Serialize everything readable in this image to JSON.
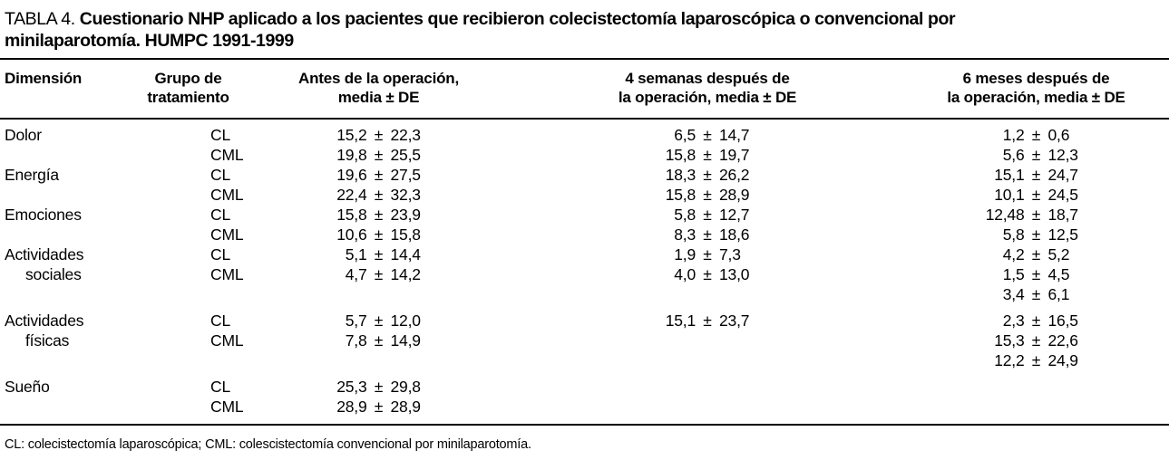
{
  "title": {
    "label": "TABLA 4.",
    "line1": "Cuestionario NHP aplicado a los pacientes que recibieron colecistectomía laparoscópica o convencional por",
    "line2": "minilaparotomía. HUMPC 1991-1999"
  },
  "table": {
    "headers": [
      "Dimensión",
      "Grupo de\ntratamiento",
      "Antes de la operación,\nmedia ± DE",
      "4 semanas después de\nla operación, media ± DE",
      "6 meses después de\nla operación, media ± DE"
    ],
    "rows": [
      {
        "dim": "Dolor",
        "grp": "CL",
        "antes": "15,2 ± 22,3",
        "sem4": "6,5 ± 14,7",
        "mes6": "1,2 ± 0,6"
      },
      {
        "dim": "",
        "grp": "CML",
        "antes": "19,8 ± 25,5",
        "sem4": "15,8 ± 19,7",
        "mes6": "5,6 ± 12,3"
      },
      {
        "dim": "Energía",
        "grp": "CL",
        "antes": "19,6 ± 27,5",
        "sem4": "18,3 ± 26,2",
        "mes6": "15,1 ± 24,7"
      },
      {
        "dim": "",
        "grp": "CML",
        "antes": "22,4 ± 32,3",
        "sem4": "15,8 ± 28,9",
        "mes6": "10,1 ± 24,5"
      },
      {
        "dim": "Emociones",
        "grp": "CL",
        "antes": "15,8 ± 23,9",
        "sem4": "5,8 ± 12,7",
        "mes6": "12,48 ± 18,7"
      },
      {
        "dim": "",
        "grp": "CML",
        "antes": "10,6 ± 15,8",
        "sem4": "8,3 ± 18,6",
        "mes6": "5,8 ± 12,5"
      },
      {
        "dim": "Actividades",
        "grp": "CL",
        "antes": "5,1 ± 14,4",
        "sem4": "1,9 ± 7,3",
        "mes6": "4,2 ± 5,2"
      },
      {
        "dim": "sociales",
        "indent": true,
        "grp": "CML",
        "antes": "4,7 ± 14,2",
        "sem4": "4,0 ± 13,0",
        "mes6": "1,5 ± 4,5"
      },
      {
        "dim": "",
        "grp": "",
        "antes": "",
        "sem4": "",
        "mes6": "3,4 ± 6,1"
      },
      {
        "dim": "Actividades",
        "grp": "CL",
        "antes": "5,7 ± 12,0",
        "sem4": "15,1 ± 23,7",
        "mes6": "2,3 ± 16,5",
        "gap": true
      },
      {
        "dim": "físicas",
        "indent": true,
        "grp": "CML",
        "antes": "7,8 ± 14,9",
        "sem4": "",
        "mes6": "15,3 ± 22,6"
      },
      {
        "dim": "",
        "grp": "",
        "antes": "",
        "sem4": "",
        "mes6": "12,2 ± 24,9"
      },
      {
        "dim": "Sueño",
        "grp": "CL",
        "antes": "25,3 ± 29,8",
        "sem4": "",
        "mes6": "",
        "gap": true
      },
      {
        "dim": "",
        "grp": "CML",
        "antes": "28,9 ± 28,9",
        "sem4": "",
        "mes6": ""
      }
    ],
    "plus_minus": "±"
  },
  "footnote": "CL: colecistectomía laparoscópica; CML: colescistectomía convencional por minilaparotomía.",
  "colors": {
    "text": "#000000",
    "background": "#ffffff",
    "rule": "#000000"
  }
}
